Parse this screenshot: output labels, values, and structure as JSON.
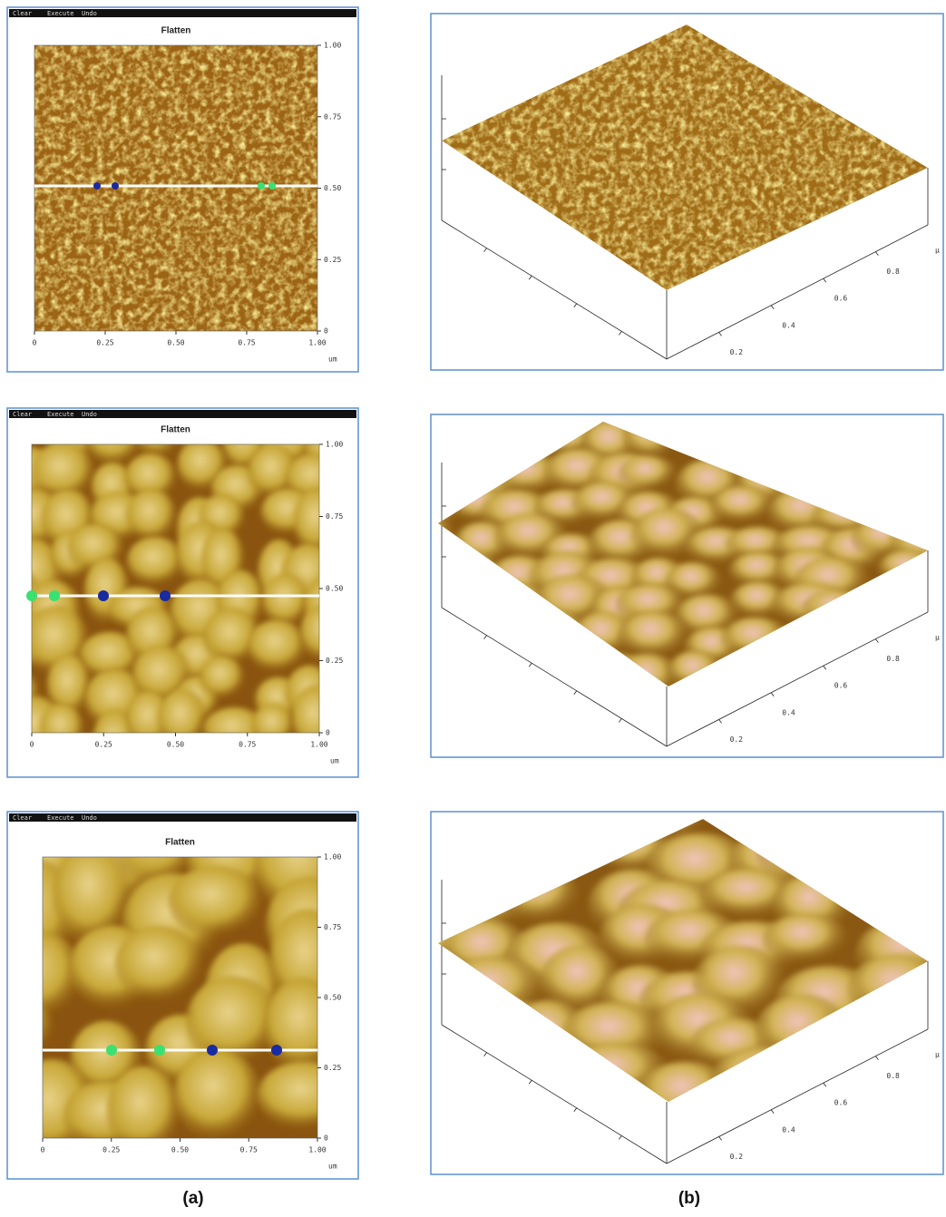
{
  "panels_a": [
    {
      "menu": [
        "Clear",
        "Execute",
        "Undo"
      ],
      "title": "Flatten",
      "y_ticks": [
        "1.00",
        "0.75",
        "0.50",
        "0.25",
        "0"
      ],
      "x_ticks": [
        "0",
        "0.25",
        "0.50",
        "0.75",
        "1.00"
      ],
      "unit": "um"
    },
    {
      "menu": [
        "Clear",
        "Execute",
        "Undo"
      ],
      "title": "Flatten",
      "y_ticks": [
        "1.00",
        "0.75",
        "0.50",
        "0.25",
        "0"
      ],
      "x_ticks": [
        "0",
        "0.25",
        "0.50",
        "0.75",
        "1.00"
      ],
      "unit": "um"
    },
    {
      "menu": [
        "Clear",
        "Execute",
        "Undo"
      ],
      "title": "Flatten",
      "y_ticks": [
        "1.00",
        "0.75",
        "0.50",
        "0.25",
        "0"
      ],
      "x_ticks": [
        "0",
        "0.25",
        "0.50",
        "0.75",
        "1.00"
      ],
      "unit": "um"
    }
  ],
  "panels_b": [
    {
      "ticks": [
        "0.2",
        "0.4",
        "0.6",
        "0.8"
      ],
      "unit": "µ"
    },
    {
      "ticks": [
        "0.2",
        "0.4",
        "0.6",
        "0.8"
      ],
      "unit": "µ"
    },
    {
      "ticks": [
        "0.2",
        "0.4",
        "0.6",
        "0.8"
      ],
      "unit": "µ"
    }
  ],
  "captions": [
    "(a)",
    "(b)"
  ]
}
